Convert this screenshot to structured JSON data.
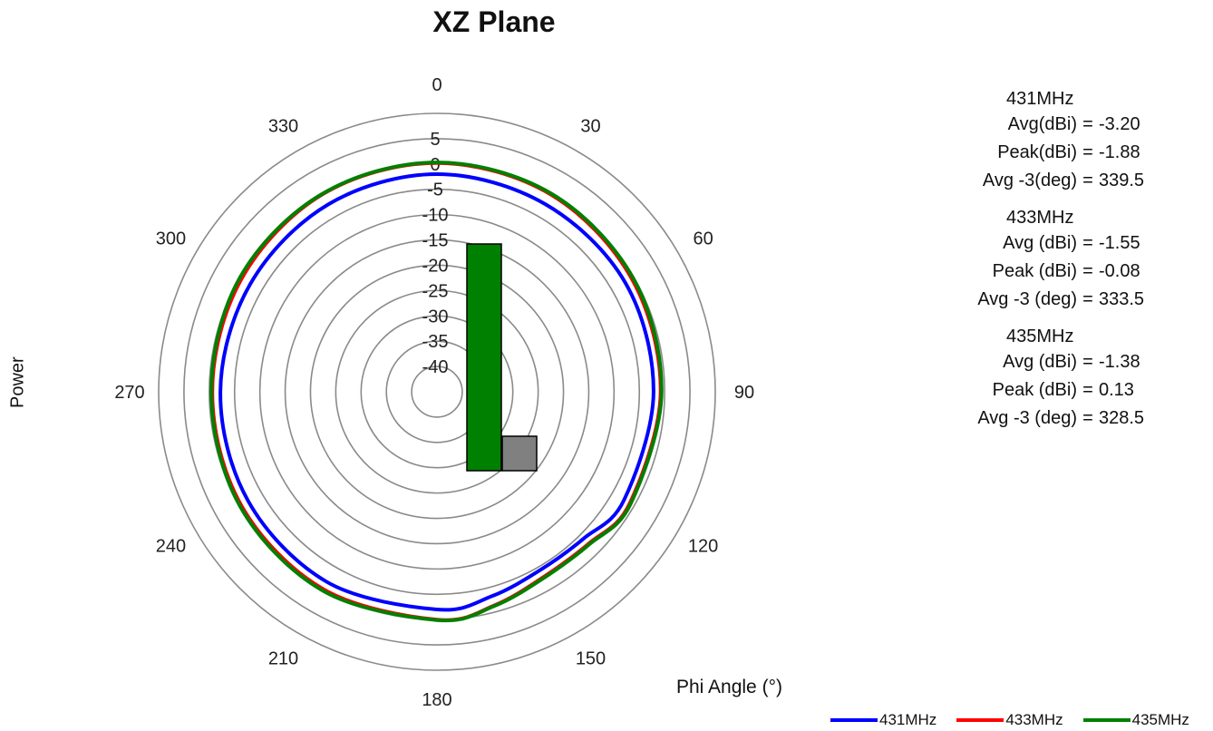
{
  "chart_data": {
    "type": "polar-line",
    "title": "XZ Plane",
    "ylabel": "Power",
    "xlabel": "Phi Angle (°)",
    "angle_ticks": [
      "0",
      "30",
      "60",
      "90",
      "120",
      "150",
      "180",
      "210",
      "240",
      "270",
      "300",
      "330"
    ],
    "radial_ticks": [
      "5",
      "0",
      "-5",
      "-10",
      "-15",
      "-20",
      "-25",
      "-30",
      "-35",
      "-40"
    ],
    "radial_range": [
      -45,
      10
    ],
    "angles_deg": [
      0,
      30,
      60,
      90,
      120,
      135,
      150,
      165,
      180,
      210,
      240,
      270,
      300,
      330
    ],
    "series": [
      {
        "name": "431MHz",
        "color": "#0000ff",
        "values": [
          -2.0,
          -2.2,
          -2.0,
          -2.2,
          -2.3,
          -4.0,
          -4.3,
          -3.2,
          -2.0,
          -1.6,
          -1.9,
          -2.2,
          -2.4,
          -2.2
        ]
      },
      {
        "name": "433MHz",
        "color": "#ff0000",
        "values": [
          0.2,
          0.0,
          -0.5,
          -0.8,
          -1.0,
          -2.6,
          -2.8,
          -1.3,
          0.0,
          0.0,
          -0.3,
          -0.6,
          -0.4,
          0.1
        ]
      },
      {
        "name": "435MHz",
        "color": "#008000",
        "values": [
          0.3,
          0.2,
          -0.2,
          -0.6,
          -0.8,
          -2.4,
          -2.6,
          -1.2,
          0.1,
          0.3,
          0.0,
          -0.4,
          0.0,
          0.2
        ]
      }
    ],
    "overlay_bars": [
      {
        "color": "#008000"
      },
      {
        "color": "#808080"
      }
    ],
    "grid": true,
    "legend_position": "bottom-right"
  },
  "stats": [
    {
      "freq": "431MHz",
      "rows": [
        {
          "label": "Avg(dBi)",
          "value": "-3.20"
        },
        {
          "label": "Peak(dBi)",
          "value": "-1.88"
        },
        {
          "label": "Avg -3(deg)",
          "value": "339.5"
        }
      ]
    },
    {
      "freq": "433MHz",
      "rows": [
        {
          "label": "Avg (dBi)",
          "value": "-1.55"
        },
        {
          "label": "Peak (dBi)",
          "value": "-0.08"
        },
        {
          "label": "Avg -3 (deg)",
          "value": "333.5"
        }
      ]
    },
    {
      "freq": "435MHz",
      "rows": [
        {
          "label": "Avg (dBi)",
          "value": "-1.38"
        },
        {
          "label": "Peak (dBi)",
          "value": "0.13"
        },
        {
          "label": "Avg -3 (deg)",
          "value": "328.5"
        }
      ]
    }
  ],
  "equals_sign": "="
}
